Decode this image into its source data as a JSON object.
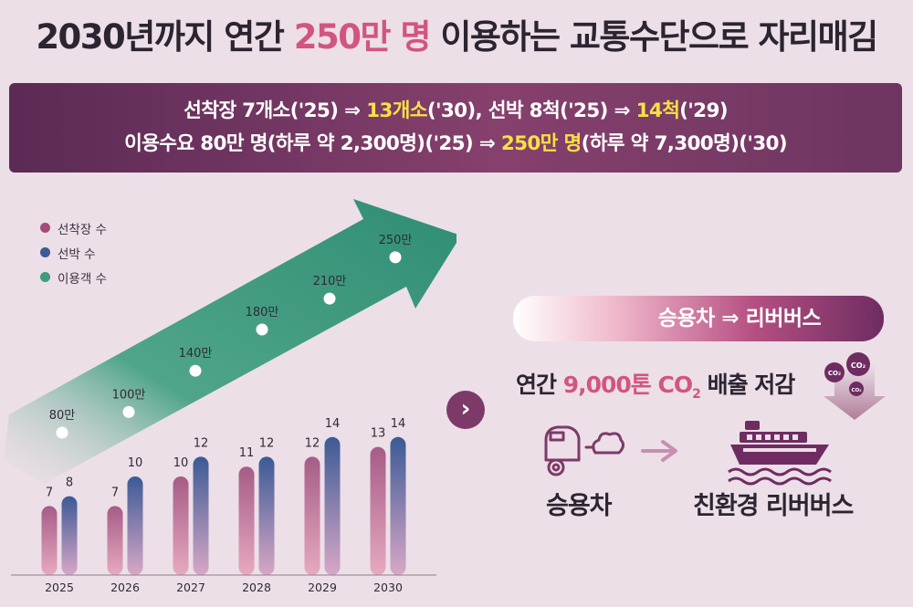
{
  "headline": {
    "pre": "2030년까지 연간 ",
    "highlight": "250만 명",
    "post": " 이용하는 교통수단으로 자리매김"
  },
  "banner": {
    "line1": {
      "a": "선착장 7개소('25) ⇒ ",
      "b": "13개소",
      "c": "('30), 선박 8척('25) ⇒ ",
      "d": "14척",
      "e": "('29)"
    },
    "line2": {
      "a": "이용수요 80만 명(하루 약 2,300명)('25) ⇒ ",
      "b": "250만 명",
      "c": "(하루 약 7,300명)('30)"
    }
  },
  "legend": [
    {
      "label": "선착장 수",
      "color": "#a34c78"
    },
    {
      "label": "선박 수",
      "color": "#3f5a94"
    },
    {
      "label": "이용객 수",
      "color": "#3f9a80"
    }
  ],
  "chart_data": {
    "type": "bar",
    "categories": [
      "2025",
      "2026",
      "2027",
      "2028",
      "2029",
      "2030"
    ],
    "series": [
      {
        "name": "선착장 수",
        "values": [
          7,
          7,
          10,
          11,
          12,
          13
        ]
      },
      {
        "name": "선박 수",
        "values": [
          8,
          10,
          12,
          12,
          14,
          14
        ]
      }
    ],
    "line_series": {
      "name": "이용객 수",
      "values": [
        80,
        100,
        140,
        180,
        210,
        250
      ],
      "labels": [
        "80만",
        "100만",
        "140만",
        "180만",
        "210만",
        "250만"
      ]
    }
  },
  "right": {
    "button_label": "승용차 ⇒ 리버버스",
    "reduction_pre": "연간 ",
    "reduction_value": "9,000톤 CO",
    "reduction_sub": "2",
    "reduction_post": " 배출 저감",
    "co2_labels": [
      "CO₂",
      "CO₂",
      "CO₂"
    ],
    "car_caption": "승용차",
    "bus_caption": "친환경 리버버스",
    "next_glyph": "›"
  },
  "colors": {
    "accent_pink": "#d2557f",
    "highlight_yellow": "#f8e044",
    "banner_purple": "#6d3560",
    "arrow_green": "#3f9a80"
  }
}
